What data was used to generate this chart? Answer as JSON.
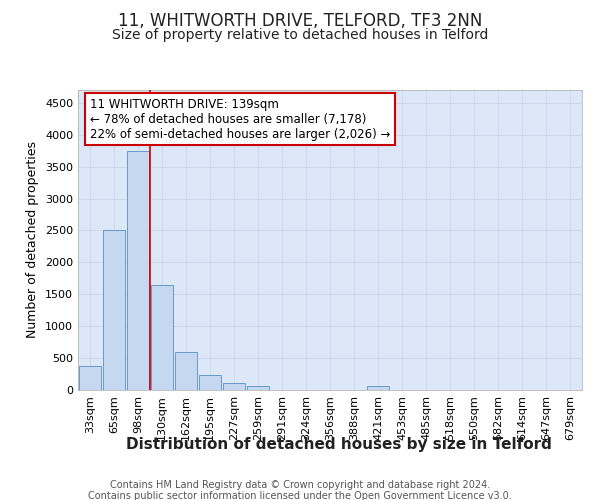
{
  "title": "11, WHITWORTH DRIVE, TELFORD, TF3 2NN",
  "subtitle": "Size of property relative to detached houses in Telford",
  "xlabel": "Distribution of detached houses by size in Telford",
  "ylabel": "Number of detached properties",
  "categories": [
    "33sqm",
    "65sqm",
    "98sqm",
    "130sqm",
    "162sqm",
    "195sqm",
    "227sqm",
    "259sqm",
    "291sqm",
    "324sqm",
    "356sqm",
    "388sqm",
    "421sqm",
    "453sqm",
    "485sqm",
    "518sqm",
    "550sqm",
    "582sqm",
    "614sqm",
    "647sqm",
    "679sqm"
  ],
  "values": [
    375,
    2500,
    3750,
    1650,
    600,
    240,
    105,
    65,
    0,
    0,
    0,
    0,
    65,
    0,
    0,
    0,
    0,
    0,
    0,
    0,
    0
  ],
  "bar_color": "#c5d8f0",
  "bar_edge_color": "#6699cc",
  "red_line_x": 3,
  "red_line_color": "#cc0000",
  "annotation_text_line1": "11 WHITWORTH DRIVE: 139sqm",
  "annotation_text_line2": "← 78% of detached houses are smaller (7,178)",
  "annotation_text_line3": "22% of semi-detached houses are larger (2,026) →",
  "ylim": [
    0,
    4700
  ],
  "yticks": [
    0,
    500,
    1000,
    1500,
    2000,
    2500,
    3000,
    3500,
    4000,
    4500
  ],
  "grid_color": "#c8d4e8",
  "background_color": "#dce8f8",
  "footer_line1": "Contains HM Land Registry data © Crown copyright and database right 2024.",
  "footer_line2": "Contains public sector information licensed under the Open Government Licence v3.0.",
  "title_fontsize": 12,
  "subtitle_fontsize": 10,
  "xlabel_fontsize": 11,
  "ylabel_fontsize": 9,
  "tick_fontsize": 8,
  "annotation_fontsize": 8.5,
  "footer_fontsize": 7
}
